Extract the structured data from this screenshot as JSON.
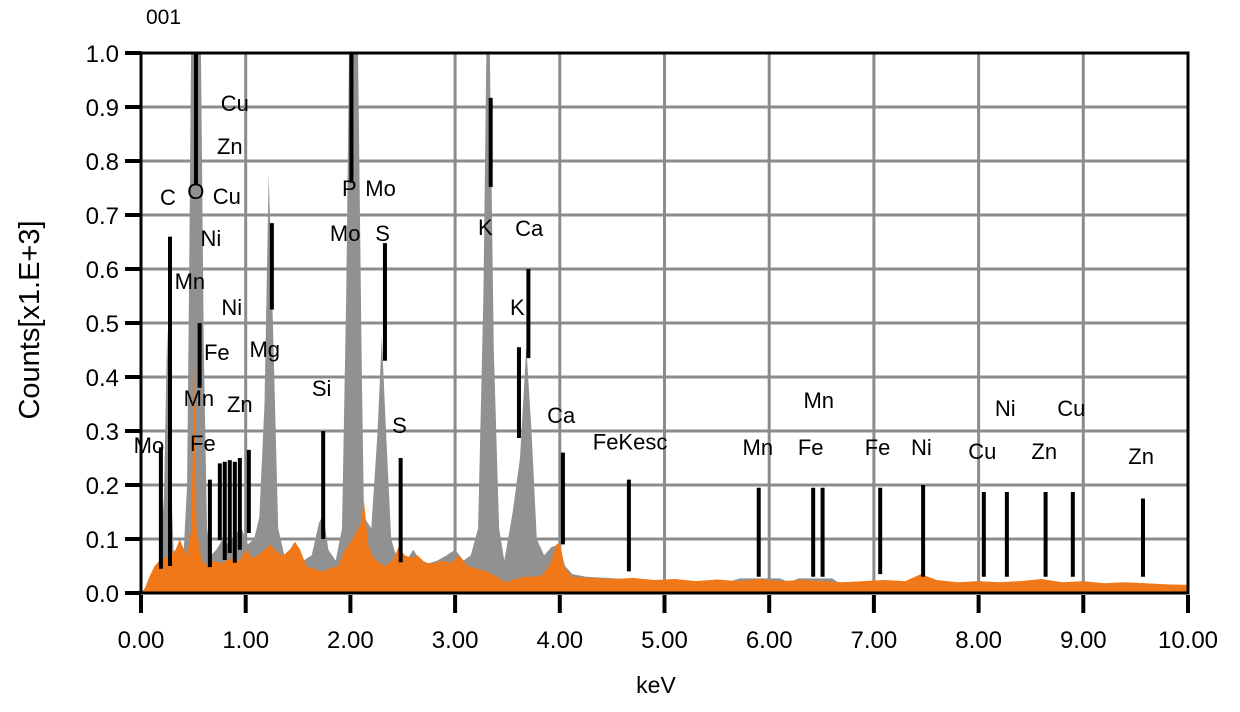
{
  "figure": {
    "spectrum_id": "001",
    "x_axis_label": "keV",
    "y_axis_label": "Counts[x1.E+3]"
  },
  "chart_data": {
    "type": "area",
    "title": "001",
    "xlabel": "keV",
    "ylabel": "Counts[x1.E+3]",
    "xlim": [
      0,
      10
    ],
    "ylim": [
      0,
      1.0
    ],
    "grid": true,
    "legend_position": "none",
    "x_ticks": [
      "0.00",
      "1.00",
      "2.00",
      "3.00",
      "4.00",
      "5.00",
      "6.00",
      "7.00",
      "8.00",
      "9.00",
      "10.00"
    ],
    "y_ticks": [
      "0.0",
      "0.1",
      "0.2",
      "0.3",
      "0.4",
      "0.5",
      "0.6",
      "0.7",
      "0.8",
      "0.9",
      "1.0"
    ],
    "colors": {
      "series_gray": "#919191",
      "series_orange": "#F07818",
      "grid": "#8C8C8C",
      "axis": "#000000",
      "marker": "#000000",
      "text": "#000000"
    },
    "series": [
      {
        "name": "spectrum-gray",
        "color_key": "series_gray",
        "points": [
          [
            0.0,
            0.0
          ],
          [
            0.06,
            0.01
          ],
          [
            0.12,
            0.02
          ],
          [
            0.18,
            0.06
          ],
          [
            0.22,
            0.18
          ],
          [
            0.25,
            0.49
          ],
          [
            0.28,
            0.25
          ],
          [
            0.31,
            0.08
          ],
          [
            0.36,
            0.04
          ],
          [
            0.4,
            0.05
          ],
          [
            0.44,
            0.2
          ],
          [
            0.46,
            0.6
          ],
          [
            0.48,
            1.05
          ],
          [
            0.57,
            1.05
          ],
          [
            0.6,
            0.45
          ],
          [
            0.63,
            0.12
          ],
          [
            0.67,
            0.07
          ],
          [
            0.72,
            0.08
          ],
          [
            0.78,
            0.1
          ],
          [
            0.84,
            0.09
          ],
          [
            0.9,
            0.11
          ],
          [
            0.96,
            0.12
          ],
          [
            1.02,
            0.09
          ],
          [
            1.08,
            0.1
          ],
          [
            1.13,
            0.14
          ],
          [
            1.18,
            0.35
          ],
          [
            1.22,
            0.775
          ],
          [
            1.26,
            0.5
          ],
          [
            1.31,
            0.12
          ],
          [
            1.38,
            0.06
          ],
          [
            1.46,
            0.05
          ],
          [
            1.55,
            0.06
          ],
          [
            1.63,
            0.07
          ],
          [
            1.7,
            0.13
          ],
          [
            1.74,
            0.145
          ],
          [
            1.79,
            0.08
          ],
          [
            1.86,
            0.06
          ],
          [
            1.92,
            0.12
          ],
          [
            1.96,
            0.55
          ],
          [
            1.99,
            1.05
          ],
          [
            2.07,
            1.05
          ],
          [
            2.11,
            0.4
          ],
          [
            2.13,
            0.14
          ],
          [
            2.2,
            0.12
          ],
          [
            2.26,
            0.3
          ],
          [
            2.3,
            0.475
          ],
          [
            2.34,
            0.3
          ],
          [
            2.39,
            0.1
          ],
          [
            2.45,
            0.06
          ],
          [
            2.52,
            0.055
          ],
          [
            2.6,
            0.08
          ],
          [
            2.67,
            0.06
          ],
          [
            2.75,
            0.055
          ],
          [
            2.83,
            0.06
          ],
          [
            2.92,
            0.07
          ],
          [
            3.0,
            0.08
          ],
          [
            3.08,
            0.06
          ],
          [
            3.15,
            0.07
          ],
          [
            3.22,
            0.12
          ],
          [
            3.27,
            0.55
          ],
          [
            3.3,
            1.02
          ],
          [
            3.33,
            1.02
          ],
          [
            3.37,
            0.45
          ],
          [
            3.42,
            0.12
          ],
          [
            3.47,
            0.06
          ],
          [
            3.55,
            0.15
          ],
          [
            3.62,
            0.25
          ],
          [
            3.68,
            0.455
          ],
          [
            3.73,
            0.3
          ],
          [
            3.78,
            0.1
          ],
          [
            3.85,
            0.07
          ],
          [
            3.92,
            0.085
          ],
          [
            3.99,
            0.09
          ],
          [
            4.05,
            0.05
          ],
          [
            4.12,
            0.035
          ],
          [
            4.25,
            0.03
          ],
          [
            4.45,
            0.028
          ],
          [
            4.7,
            0.025
          ],
          [
            5.0,
            0.022
          ],
          [
            5.3,
            0.02
          ],
          [
            5.6,
            0.02
          ],
          [
            5.72,
            0.027
          ],
          [
            6.1,
            0.027
          ],
          [
            6.2,
            0.02
          ],
          [
            6.28,
            0.027
          ],
          [
            6.6,
            0.027
          ],
          [
            6.7,
            0.015
          ],
          [
            7.0,
            0.012
          ],
          [
            7.4,
            0.01
          ],
          [
            8.0,
            0.008
          ],
          [
            9.0,
            0.006
          ],
          [
            10.0,
            0.005
          ]
        ]
      },
      {
        "name": "spectrum-orange",
        "color_key": "series_orange",
        "points": [
          [
            0.0,
            0.0
          ],
          [
            0.04,
            0.01
          ],
          [
            0.08,
            0.03
          ],
          [
            0.13,
            0.05
          ],
          [
            0.18,
            0.06
          ],
          [
            0.23,
            0.065
          ],
          [
            0.28,
            0.07
          ],
          [
            0.33,
            0.08
          ],
          [
            0.37,
            0.1
          ],
          [
            0.4,
            0.085
          ],
          [
            0.44,
            0.07
          ],
          [
            0.48,
            0.12
          ],
          [
            0.51,
            0.42
          ],
          [
            0.53,
            0.12
          ],
          [
            0.58,
            0.06
          ],
          [
            0.64,
            0.05
          ],
          [
            0.7,
            0.06
          ],
          [
            0.76,
            0.055
          ],
          [
            0.82,
            0.06
          ],
          [
            0.88,
            0.065
          ],
          [
            0.94,
            0.06
          ],
          [
            1.0,
            0.08
          ],
          [
            1.06,
            0.065
          ],
          [
            1.12,
            0.07
          ],
          [
            1.18,
            0.08
          ],
          [
            1.24,
            0.09
          ],
          [
            1.3,
            0.075
          ],
          [
            1.36,
            0.07
          ],
          [
            1.42,
            0.08
          ],
          [
            1.47,
            0.095
          ],
          [
            1.52,
            0.08
          ],
          [
            1.58,
            0.05
          ],
          [
            1.65,
            0.045
          ],
          [
            1.72,
            0.04
          ],
          [
            1.8,
            0.045
          ],
          [
            1.88,
            0.05
          ],
          [
            1.95,
            0.08
          ],
          [
            2.02,
            0.1
          ],
          [
            2.1,
            0.13
          ],
          [
            2.13,
            0.17
          ],
          [
            2.17,
            0.09
          ],
          [
            2.22,
            0.065
          ],
          [
            2.28,
            0.055
          ],
          [
            2.34,
            0.05
          ],
          [
            2.4,
            0.06
          ],
          [
            2.46,
            0.085
          ],
          [
            2.52,
            0.07
          ],
          [
            2.58,
            0.065
          ],
          [
            2.64,
            0.07
          ],
          [
            2.72,
            0.055
          ],
          [
            2.8,
            0.055
          ],
          [
            2.88,
            0.06
          ],
          [
            2.96,
            0.055
          ],
          [
            3.04,
            0.07
          ],
          [
            3.12,
            0.05
          ],
          [
            3.2,
            0.045
          ],
          [
            3.3,
            0.04
          ],
          [
            3.4,
            0.03
          ],
          [
            3.48,
            0.02
          ],
          [
            3.56,
            0.025
          ],
          [
            3.65,
            0.03
          ],
          [
            3.74,
            0.03
          ],
          [
            3.82,
            0.032
          ],
          [
            3.9,
            0.05
          ],
          [
            3.97,
            0.09
          ],
          [
            4.0,
            0.094
          ],
          [
            4.05,
            0.045
          ],
          [
            4.12,
            0.03
          ],
          [
            4.3,
            0.028
          ],
          [
            4.5,
            0.026
          ],
          [
            4.7,
            0.028
          ],
          [
            4.9,
            0.024
          ],
          [
            5.1,
            0.026
          ],
          [
            5.3,
            0.022
          ],
          [
            5.5,
            0.025
          ],
          [
            5.7,
            0.022
          ],
          [
            5.9,
            0.026
          ],
          [
            6.1,
            0.022
          ],
          [
            6.3,
            0.024
          ],
          [
            6.5,
            0.022
          ],
          [
            6.7,
            0.02
          ],
          [
            6.9,
            0.022
          ],
          [
            7.1,
            0.024
          ],
          [
            7.3,
            0.022
          ],
          [
            7.45,
            0.035
          ],
          [
            7.6,
            0.024
          ],
          [
            7.8,
            0.02
          ],
          [
            8.0,
            0.022
          ],
          [
            8.2,
            0.02
          ],
          [
            8.4,
            0.022
          ],
          [
            8.6,
            0.026
          ],
          [
            8.8,
            0.02
          ],
          [
            9.0,
            0.022
          ],
          [
            9.2,
            0.018
          ],
          [
            9.4,
            0.02
          ],
          [
            9.6,
            0.018
          ],
          [
            9.8,
            0.016
          ],
          [
            10.0,
            0.015
          ]
        ]
      }
    ],
    "element_markers": [
      {
        "element": "Mo",
        "keV": 0.19,
        "top": 0.27,
        "bottom": 0.045
      },
      {
        "element": "C",
        "keV": 0.277,
        "top": 0.66,
        "bottom": 0.05
      },
      {
        "element": "O",
        "keV": 0.525,
        "top": 1.0,
        "bottom": 0.755
      },
      {
        "element": "Mn-L",
        "keV": 0.56,
        "top": 0.5,
        "bottom": 0.38
      },
      {
        "element": "Mn-L",
        "keV": 0.658,
        "top": 0.21,
        "bottom": 0.048
      },
      {
        "element": "Fe-L",
        "keV": 0.753,
        "top": 0.24,
        "bottom": 0.098
      },
      {
        "element": "Fe-L",
        "keV": 0.8,
        "top": 0.243,
        "bottom": 0.061
      },
      {
        "element": "Ni-L",
        "keV": 0.848,
        "top": 0.246,
        "bottom": 0.074
      },
      {
        "element": "Cu-L",
        "keV": 0.896,
        "top": 0.243,
        "bottom": 0.056
      },
      {
        "element": "Zn-L",
        "keV": 0.944,
        "top": 0.25,
        "bottom": 0.08
      },
      {
        "element": "Zn-L",
        "keV": 1.03,
        "top": 0.265,
        "bottom": 0.111
      },
      {
        "element": "Mg",
        "keV": 1.25,
        "top": 0.685,
        "bottom": 0.525
      },
      {
        "element": "Si",
        "keV": 1.74,
        "top": 0.3,
        "bottom": 0.1
      },
      {
        "element": "P",
        "keV": 2.01,
        "top": 1.0,
        "bottom": 0.76
      },
      {
        "element": "S",
        "keV": 2.33,
        "top": 0.648,
        "bottom": 0.43
      },
      {
        "element": "S-Kb",
        "keV": 2.48,
        "top": 0.25,
        "bottom": 0.057
      },
      {
        "element": "K",
        "keV": 3.34,
        "top": 0.917,
        "bottom": 0.752
      },
      {
        "element": "K-Kb",
        "keV": 3.61,
        "top": 0.455,
        "bottom": 0.287
      },
      {
        "element": "Ca",
        "keV": 3.7,
        "top": 0.6,
        "bottom": 0.435
      },
      {
        "element": "Ca-Kb",
        "keV": 4.03,
        "top": 0.26,
        "bottom": 0.09
      },
      {
        "element": "FeKesc",
        "keV": 4.66,
        "top": 0.21,
        "bottom": 0.04
      },
      {
        "element": "Mn",
        "keV": 5.9,
        "top": 0.195,
        "bottom": 0.03
      },
      {
        "element": "Fe",
        "keV": 6.42,
        "top": 0.195,
        "bottom": 0.03
      },
      {
        "element": "Mn-Kb",
        "keV": 6.51,
        "top": 0.195,
        "bottom": 0.03
      },
      {
        "element": "Fe-Kb",
        "keV": 7.06,
        "top": 0.195,
        "bottom": 0.035
      },
      {
        "element": "Ni",
        "keV": 7.47,
        "top": 0.2,
        "bottom": 0.03
      },
      {
        "element": "Cu",
        "keV": 8.05,
        "top": 0.187,
        "bottom": 0.03
      },
      {
        "element": "Ni-Kb",
        "keV": 8.27,
        "top": 0.187,
        "bottom": 0.03
      },
      {
        "element": "Zn",
        "keV": 8.64,
        "top": 0.187,
        "bottom": 0.03
      },
      {
        "element": "Cu-Kb",
        "keV": 8.9,
        "top": 0.187,
        "bottom": 0.03
      },
      {
        "element": "Zn-Kb",
        "keV": 9.57,
        "top": 0.175,
        "bottom": 0.03
      }
    ],
    "element_labels": [
      {
        "text": "C",
        "keV": 0.257,
        "counts": 0.733
      },
      {
        "text": "O",
        "keV": 0.524,
        "counts": 0.744
      },
      {
        "text": "Cu",
        "keV": 0.82,
        "counts": 0.735
      },
      {
        "text": "Zn",
        "keV": 0.848,
        "counts": 0.828
      },
      {
        "text": "Cu",
        "keV": 0.896,
        "counts": 0.907
      },
      {
        "text": "Ni",
        "keV": 0.667,
        "counts": 0.657
      },
      {
        "text": "Mn",
        "keV": 0.467,
        "counts": 0.578
      },
      {
        "text": "Ni",
        "keV": 0.867,
        "counts": 0.53
      },
      {
        "text": "Fe",
        "keV": 0.724,
        "counts": 0.446
      },
      {
        "text": "Mn",
        "keV": 0.553,
        "counts": 0.361
      },
      {
        "text": "Zn",
        "keV": 0.944,
        "counts": 0.35
      },
      {
        "text": "Mo",
        "keV": 0.076,
        "counts": 0.274
      },
      {
        "text": "Fe",
        "keV": 0.591,
        "counts": 0.278
      },
      {
        "text": "Mg",
        "keV": 1.182,
        "counts": 0.452
      },
      {
        "text": "Si",
        "keV": 1.725,
        "counts": 0.38
      },
      {
        "text": "P",
        "keV": 1.99,
        "counts": 0.75
      },
      {
        "text": "Mo",
        "keV": 2.288,
        "counts": 0.75
      },
      {
        "text": "Mo",
        "keV": 1.95,
        "counts": 0.667
      },
      {
        "text": "S",
        "keV": 2.307,
        "counts": 0.667
      },
      {
        "text": "S",
        "keV": 2.469,
        "counts": 0.311
      },
      {
        "text": "K",
        "keV": 3.289,
        "counts": 0.678
      },
      {
        "text": "Ca",
        "keV": 3.708,
        "counts": 0.676
      },
      {
        "text": "K",
        "keV": 3.594,
        "counts": 0.53
      },
      {
        "text": "Ca",
        "keV": 4.013,
        "counts": 0.33
      },
      {
        "text": "FeKesc",
        "keV": 4.671,
        "counts": 0.281
      },
      {
        "text": "Mn",
        "keV": 5.891,
        "counts": 0.27
      },
      {
        "text": "Fe",
        "keV": 6.396,
        "counts": 0.27
      },
      {
        "text": "Mn",
        "keV": 6.473,
        "counts": 0.357
      },
      {
        "text": "Fe",
        "keV": 7.035,
        "counts": 0.27
      },
      {
        "text": "Ni",
        "keV": 7.454,
        "counts": 0.27
      },
      {
        "text": "Cu",
        "keV": 8.036,
        "counts": 0.263
      },
      {
        "text": "Ni",
        "keV": 8.255,
        "counts": 0.343
      },
      {
        "text": "Zn",
        "keV": 8.627,
        "counts": 0.263
      },
      {
        "text": "Cu",
        "keV": 8.885,
        "counts": 0.343
      },
      {
        "text": "Zn",
        "keV": 9.552,
        "counts": 0.254
      }
    ]
  }
}
